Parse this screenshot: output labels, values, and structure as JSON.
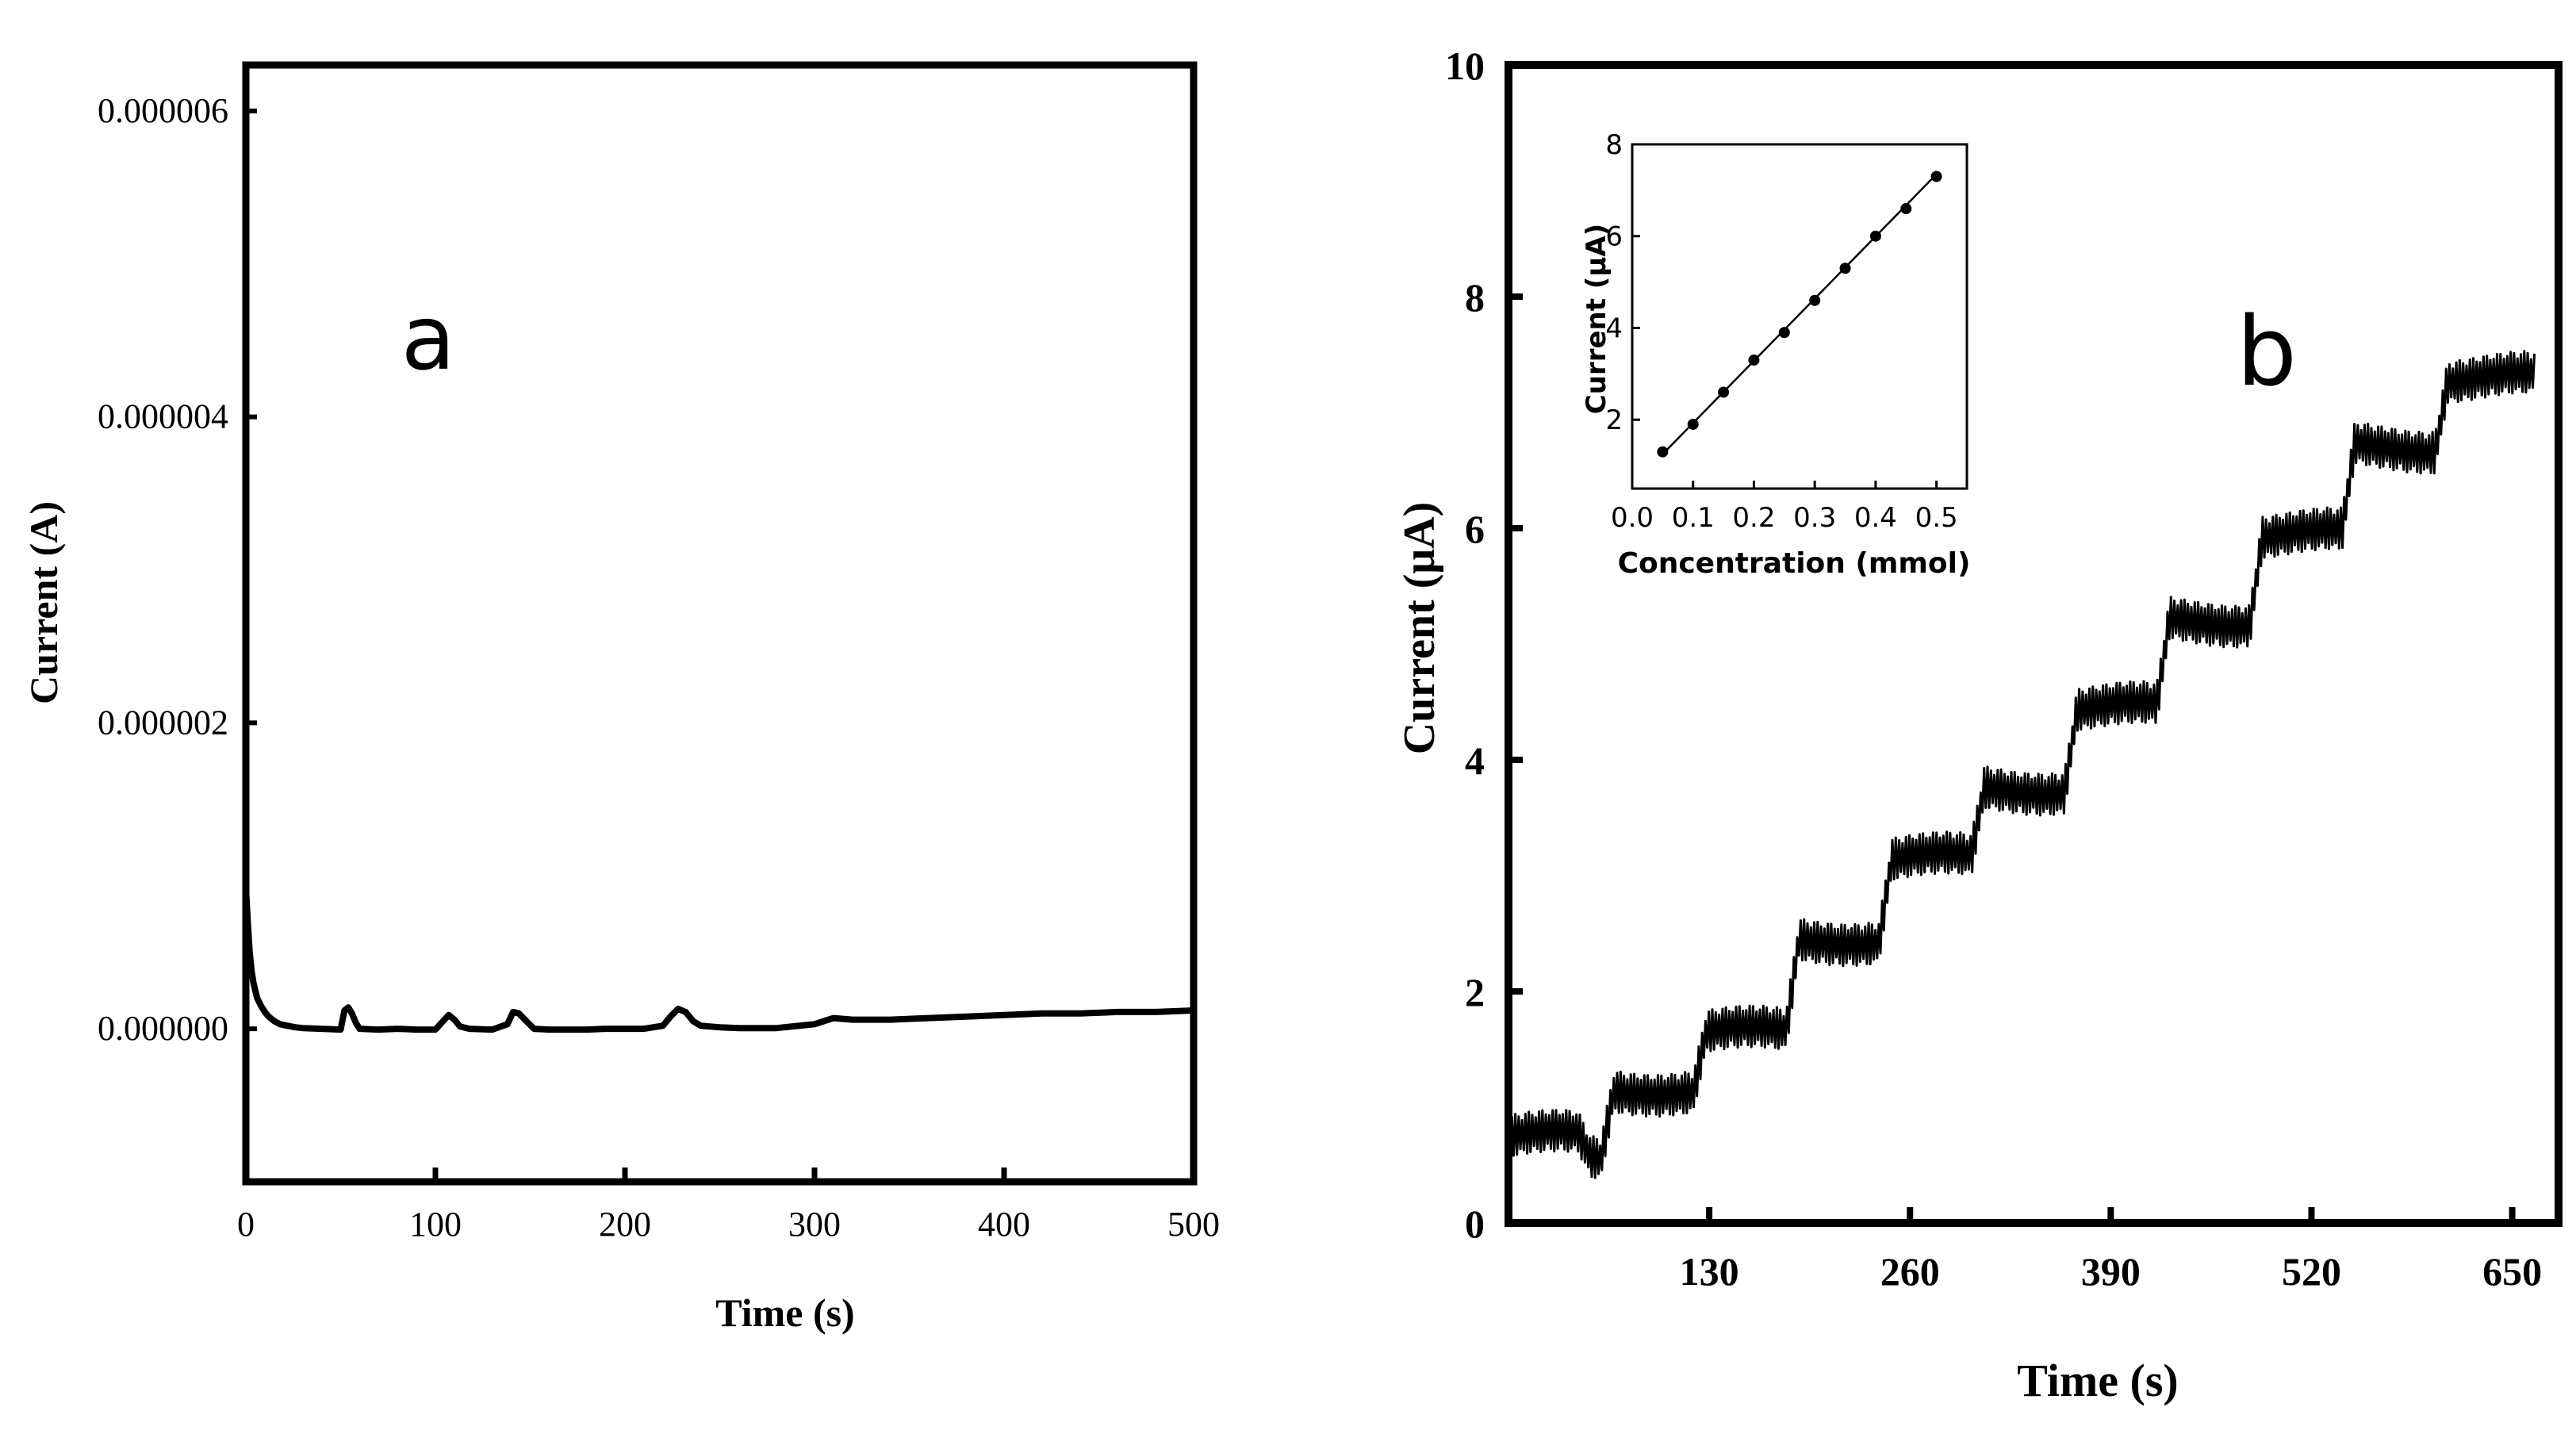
{
  "chart_data": [
    {
      "panel_label": "a",
      "type": "line",
      "xlabel": "Time (s)",
      "ylabel": "Current (A)",
      "xlim": [
        0,
        500
      ],
      "ylim": [
        -1e-06,
        6.3e-06
      ],
      "x_ticks": [
        0,
        100,
        200,
        300,
        400,
        500
      ],
      "x_tick_labels": [
        "0",
        "100",
        "200",
        "300",
        "400",
        "500"
      ],
      "y_ticks": [
        0,
        2e-06,
        4e-06,
        6e-06
      ],
      "y_tick_labels": [
        "0.000000",
        "0.000002",
        "0.000004",
        "0.000006"
      ],
      "series": [
        {
          "x": [
            0,
            1,
            2,
            3,
            4,
            5,
            6,
            8,
            10,
            12,
            15,
            18,
            22,
            26,
            30,
            40,
            50,
            52,
            54,
            56,
            58,
            60,
            70,
            80,
            90,
            100,
            104,
            107,
            110,
            113,
            118,
            130,
            138,
            141,
            144,
            148,
            152,
            160,
            170,
            180,
            190,
            200,
            210,
            220,
            224,
            228,
            232,
            236,
            240,
            250,
            260,
            280,
            300,
            310,
            320,
            340,
            360,
            380,
            400,
            420,
            440,
            460,
            480,
            500
          ],
          "y": [
            9.3e-07,
            7e-07,
            5e-07,
            3.8e-07,
            3e-07,
            2.5e-07,
            2e-07,
            1.5e-07,
            1.1e-07,
            8e-08,
            5e-08,
            3e-08,
            2e-08,
            1e-08,
            5e-09,
            0.0,
            -5e-09,
            1.2e-07,
            1.4e-07,
            1e-07,
            4e-08,
            0.0,
            -5e-09,
            0.0,
            -5e-09,
            -5e-09,
            5e-08,
            9e-08,
            6e-08,
            1.5e-08,
            0.0,
            -5e-09,
            3e-08,
            1.1e-07,
            1e-07,
            5e-08,
            0.0,
            -5e-09,
            -5e-09,
            -5e-09,
            0.0,
            0.0,
            0.0,
            2e-08,
            8e-08,
            1.3e-07,
            1.1e-07,
            5e-08,
            2e-08,
            1e-08,
            5e-09,
            5e-09,
            3e-08,
            7e-08,
            6e-08,
            6e-08,
            7e-08,
            8e-08,
            9e-08,
            1e-07,
            1e-07,
            1.1e-07,
            1.1e-07,
            1.2e-07
          ]
        }
      ]
    },
    {
      "panel_label": "b",
      "type": "line",
      "xlabel": "Time (s)",
      "ylabel": "Current (μA)",
      "xlim": [
        0,
        680
      ],
      "ylim": [
        0,
        10
      ],
      "x_ticks": [
        130,
        260,
        390,
        520,
        650
      ],
      "x_tick_labels": [
        "130",
        "260",
        "390",
        "520",
        "650"
      ],
      "y_ticks": [
        0,
        2,
        4,
        6,
        8,
        10
      ],
      "y_tick_labels": [
        "0",
        "2",
        "4",
        "6",
        "8",
        "10"
      ],
      "steps": [
        {
          "t_start": 0,
          "t_end": 45,
          "y": 0.75
        },
        {
          "t_start": 45,
          "t_end": 60,
          "y": 0.55
        },
        {
          "t_start": 60,
          "t_end": 120,
          "y": 1.15
        },
        {
          "t_start": 120,
          "t_end": 180,
          "y": 1.65
        },
        {
          "t_start": 180,
          "t_end": 240,
          "y": 2.45
        },
        {
          "t_start": 240,
          "t_end": 300,
          "y": 3.15
        },
        {
          "t_start": 300,
          "t_end": 360,
          "y": 3.75
        },
        {
          "t_start": 360,
          "t_end": 420,
          "y": 4.45
        },
        {
          "t_start": 420,
          "t_end": 480,
          "y": 5.2
        },
        {
          "t_start": 480,
          "t_end": 540,
          "y": 5.95
        },
        {
          "t_start": 540,
          "t_end": 600,
          "y": 6.7
        },
        {
          "t_start": 600,
          "t_end": 665,
          "y": 7.3
        }
      ],
      "noise_amplitude": 0.18,
      "inset": {
        "type": "scatter",
        "xlabel": "Concentration (mmol)",
        "ylabel": "Current (μA)",
        "xlim": [
          0.0,
          0.55
        ],
        "ylim": [
          0.5,
          8
        ],
        "x_ticks": [
          0.0,
          0.1,
          0.2,
          0.3,
          0.4,
          0.5
        ],
        "x_tick_labels": [
          "0.0",
          "0.1",
          "0.2",
          "0.3",
          "0.4",
          "0.5"
        ],
        "y_ticks": [
          2,
          4,
          6,
          8
        ],
        "y_tick_labels": [
          "2",
          "4",
          "6",
          "8"
        ],
        "x": [
          0.05,
          0.1,
          0.15,
          0.2,
          0.25,
          0.3,
          0.35,
          0.4,
          0.45,
          0.5
        ],
        "y": [
          1.3,
          1.9,
          2.6,
          3.3,
          3.9,
          4.6,
          5.3,
          6.0,
          6.6,
          7.3
        ],
        "fit_line": {
          "x": [
            0.05,
            0.5
          ],
          "y": [
            1.25,
            7.35
          ]
        }
      }
    }
  ]
}
